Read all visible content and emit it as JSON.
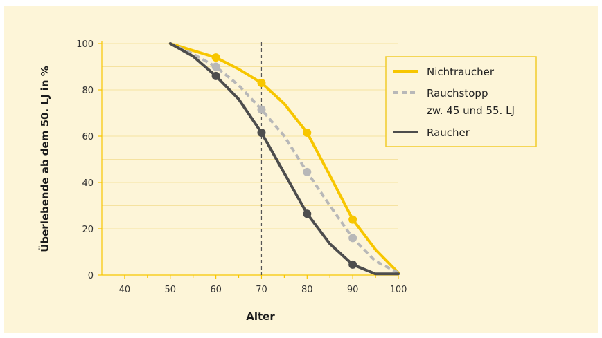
{
  "chart_data": {
    "type": "line",
    "title": "",
    "xlabel": "Alter",
    "ylabel": "Überlebende ab dem 50. LJ in %",
    "xlim": [
      35,
      100
    ],
    "ylim": [
      0,
      100
    ],
    "xticks": [
      40,
      50,
      60,
      70,
      80,
      90,
      100
    ],
    "yticks": [
      0,
      20,
      40,
      60,
      80,
      100
    ],
    "grid": true,
    "reference_line_x": 70,
    "legend_position": "top-right",
    "colors": {
      "background": "#fdf5d8",
      "grid": "#f5e2a0",
      "nichtraucher": "#f7c600",
      "rauchstopp": "#b8b8b8",
      "raucher": "#4d4d4d",
      "legend_border": "#f2cc2a",
      "reference_line": "#555555"
    },
    "series": [
      {
        "key": "nichtraucher",
        "name": "Nichtraucher",
        "style": "solid",
        "x": [
          50,
          55,
          60,
          65,
          70,
          75,
          80,
          85,
          90,
          95,
          100
        ],
        "y": [
          100,
          97,
          94,
          89,
          83,
          74,
          61.5,
          43,
          24,
          11,
          1
        ],
        "marker_x": [
          60,
          70,
          80,
          90
        ],
        "marker_y": [
          94,
          83,
          61.5,
          24
        ]
      },
      {
        "key": "rauchstopp",
        "name_lines": [
          "Rauchstopp",
          "zw. 45 und 55. LJ"
        ],
        "style": "dashed",
        "x": [
          50,
          55,
          60,
          65,
          70,
          75,
          80,
          85,
          90,
          95,
          100
        ],
        "y": [
          100,
          95.5,
          90,
          82,
          71.5,
          60,
          44.5,
          30,
          16,
          6,
          1
        ],
        "marker_x": [
          60,
          70,
          80,
          90
        ],
        "marker_y": [
          90,
          71.5,
          44.5,
          16
        ]
      },
      {
        "key": "raucher",
        "name": "Raucher",
        "style": "solid",
        "x": [
          50,
          55,
          60,
          65,
          70,
          75,
          80,
          85,
          90,
          95,
          100
        ],
        "y": [
          100,
          94.5,
          86,
          76,
          61.5,
          44,
          26.5,
          13.5,
          4.5,
          0.5,
          0.5
        ],
        "marker_x": [
          60,
          70,
          80,
          90
        ],
        "marker_y": [
          86,
          61.5,
          26.5,
          4.5
        ]
      }
    ]
  }
}
